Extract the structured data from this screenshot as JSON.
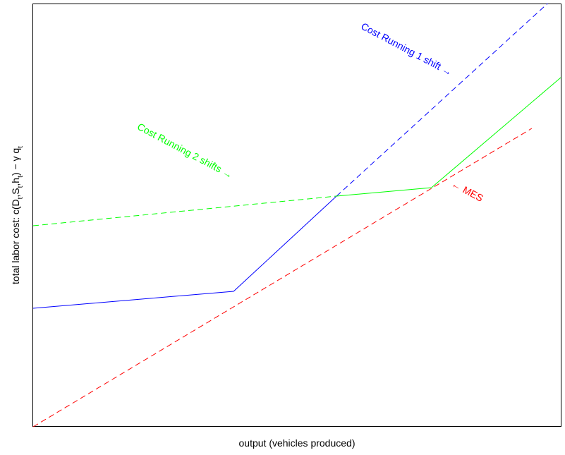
{
  "chart_data": {
    "type": "line",
    "title": "",
    "xlabel": "output (vehicles produced)",
    "ylabel": "total labor cost: c(D_t,S_t,h_t) − γ q_t",
    "xlim": [
      0,
      100
    ],
    "ylim": [
      0,
      100
    ],
    "grid": false,
    "legend": "none",
    "series": [
      {
        "name": "",
        "color": "#0000ff",
        "dash": "solid",
        "x": [
          0,
          38,
          57.5
        ],
        "y": [
          28,
          32,
          54.5
        ]
      },
      {
        "name": "",
        "color": "#0000ff",
        "dash": "dashed",
        "x": [
          57.5,
          97.5
        ],
        "y": [
          54.5,
          100
        ]
      },
      {
        "name": "",
        "color": "#00ff00",
        "dash": "dashed",
        "x": [
          0,
          57.5
        ],
        "y": [
          47.5,
          54.5
        ]
      },
      {
        "name": "",
        "color": "#00ff00",
        "dash": "solid",
        "x": [
          57.5,
          75.5,
          100
        ],
        "y": [
          54.5,
          56.5,
          82.5
        ]
      },
      {
        "name": "",
        "color": "#ff0000",
        "dash": "dashed",
        "x": [
          0,
          94.5
        ],
        "y": [
          0,
          70.5
        ]
      }
    ],
    "annotations": [
      {
        "text": "Cost Running 1 shift →",
        "color": "#0000ff",
        "x": 70.5,
        "y": 88.5,
        "rotate": 28
      },
      {
        "text": "Cost Running 2 shifts →",
        "color": "#00ff00",
        "x": 28.5,
        "y": 64.5,
        "rotate": 28
      },
      {
        "text": "← MES",
        "color": "#ff0000",
        "x": 82,
        "y": 55,
        "rotate": 28
      }
    ]
  }
}
